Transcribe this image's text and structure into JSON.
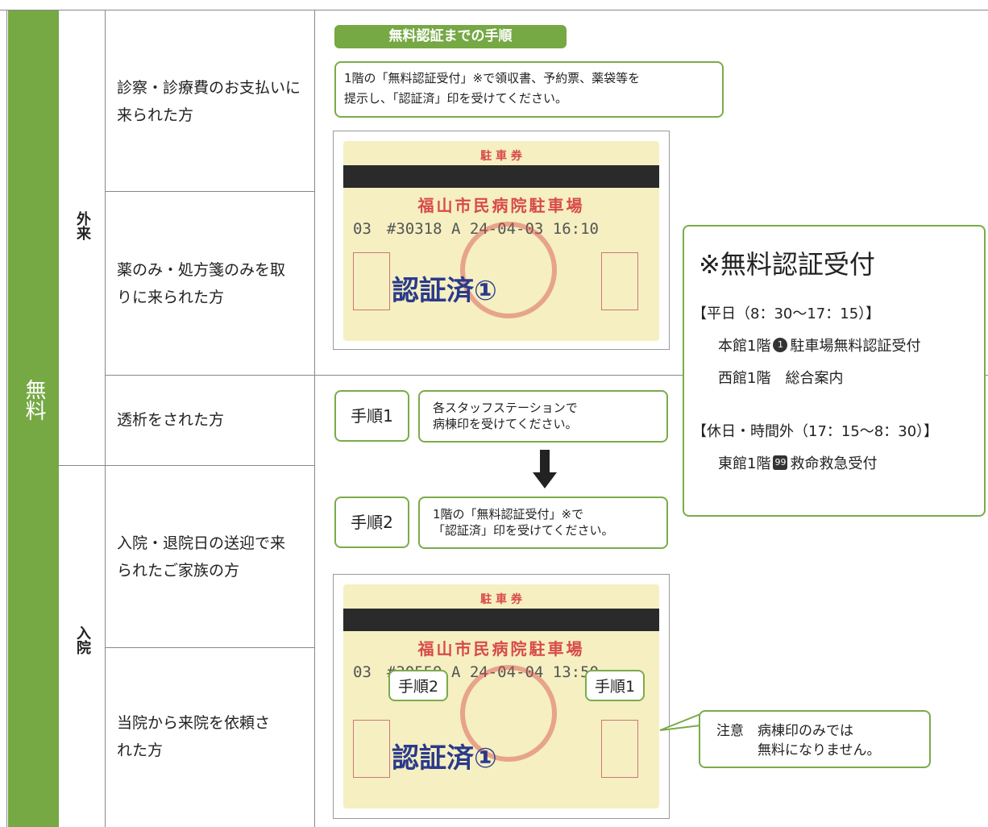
{
  "category": "無料",
  "groups": [
    "外来",
    "入院"
  ],
  "rows": [
    "診察・診療費のお支払いに来られた方",
    "薬のみ・処方箋のみを取りに来られた方",
    "透析をされた方",
    "入院・退院日の送迎で来られたご家族の方",
    "当院から来院を依頼された方"
  ],
  "procedure": {
    "banner": "無料認証までの手順",
    "text": "1階の「無料認証受付」※で領収書、予約票、薬袋等を\n提示し、「認証済」印を受けてください。"
  },
  "steps": [
    {
      "label": "手順1",
      "text": "各スタッフステーションで\n病棟印を受けてください。"
    },
    {
      "label": "手順2",
      "text": "1階の「無料認証受付」※で\n「認証済」印を受けてください。"
    }
  ],
  "tickets": [
    {
      "title": "駐 車 券",
      "name": "福山市民病院駐車場",
      "line": "03　#30318 A 24-04-03 16:10",
      "stamp": "認証済①"
    },
    {
      "title": "駐 車 券",
      "name": "福山市民病院駐車場",
      "line": "03　#30559 A 24-04-04 13:50",
      "stamp": "認証済①",
      "callouts": [
        "手順2",
        "手順1"
      ]
    }
  ],
  "note": "注意　病棟印のみでは\n　　　無料になりません。",
  "reception": {
    "title": "※無料認証受付",
    "weekday": {
      "heading": "【平日（8：30〜17：15）】",
      "lines": [
        {
          "before": "本館1階",
          "badge": "1",
          "after": "駐車場無料認証受付"
        },
        {
          "before": "西館1階　総合案内"
        }
      ]
    },
    "holiday": {
      "heading": "【休日・時間外（17：15〜8：30）】",
      "lines": [
        {
          "before": "東館1階",
          "badge": "99",
          "after": "救命救急受付"
        }
      ]
    }
  }
}
